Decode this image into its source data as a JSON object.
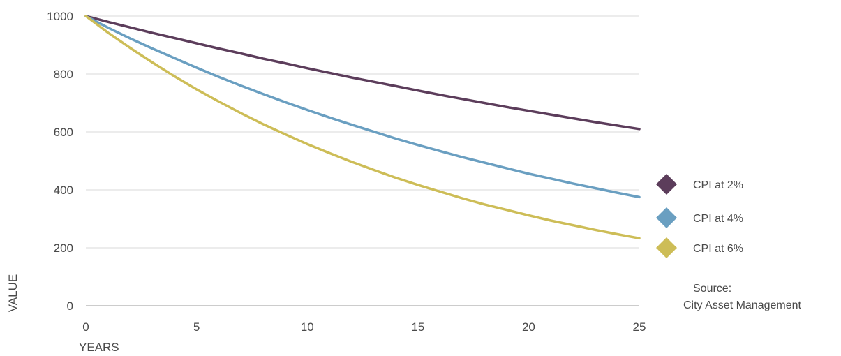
{
  "chart_data": {
    "type": "line",
    "xlabel": "YEARS",
    "ylabel": "VALUE",
    "xlim": [
      0,
      25
    ],
    "ylim": [
      0,
      1000
    ],
    "x_ticks": [
      0,
      5,
      10,
      15,
      20,
      25
    ],
    "y_ticks": [
      0,
      200,
      400,
      600,
      800,
      1000
    ],
    "grid": "horizontal",
    "legend_position": "right",
    "x": [
      0,
      1,
      2,
      3,
      4,
      5,
      6,
      7,
      8,
      9,
      10,
      11,
      12,
      13,
      14,
      15,
      16,
      17,
      18,
      19,
      20,
      21,
      22,
      23,
      24,
      25
    ],
    "series": [
      {
        "name": "CPI at 2%",
        "color": "#5c3d5b",
        "values": [
          1000,
          980,
          961,
          942,
          924,
          906,
          888,
          871,
          853,
          837,
          820,
          804,
          788,
          773,
          758,
          743,
          728,
          714,
          700,
          686,
          673,
          660,
          647,
          634,
          622,
          610
        ]
      },
      {
        "name": "CPI at 4%",
        "color": "#6a9fc1",
        "values": [
          1000,
          960,
          923,
          888,
          855,
          822,
          790,
          760,
          731,
          703,
          676,
          650,
          625,
          601,
          577,
          555,
          534,
          513,
          494,
          475,
          456,
          439,
          422,
          406,
          390,
          375
        ]
      },
      {
        "name": "CPI at 6%",
        "color": "#cdbd57",
        "values": [
          1000,
          943,
          890,
          840,
          792,
          747,
          705,
          665,
          627,
          592,
          558,
          527,
          497,
          469,
          442,
          417,
          394,
          371,
          350,
          331,
          312,
          294,
          278,
          262,
          247,
          233
        ]
      }
    ],
    "source_label": "Source:",
    "source_name": "City Asset Management"
  }
}
